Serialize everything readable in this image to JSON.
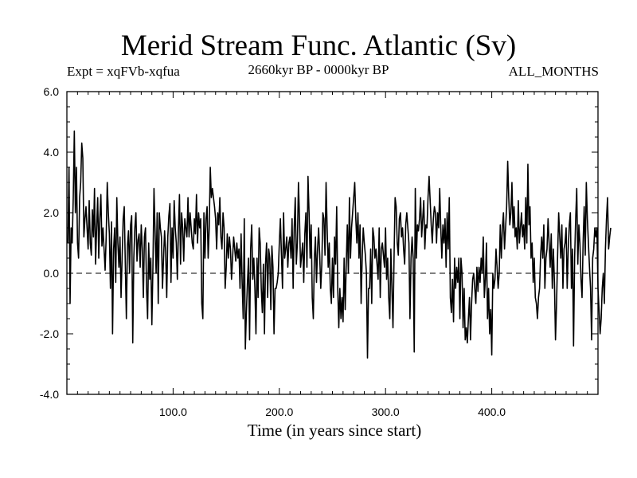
{
  "chart_data": {
    "type": "line",
    "title": "Merid Stream Func. Atlantic (Sv)",
    "subtitle_left": "Expt = xqFVb-xqfua",
    "subtitle_center": "2660kyr BP - 0000kyr BP",
    "subtitle_right": "ALL_MONTHS",
    "xlabel": "Time (in years since start)",
    "ylabel": "",
    "xlim": [
      0,
      500
    ],
    "ylim": [
      -4.0,
      6.0
    ],
    "x_ticks": [
      100,
      200,
      300,
      400
    ],
    "x_tick_labels": [
      "100.0",
      "200.0",
      "300.0",
      "400.0"
    ],
    "y_ticks": [
      -4,
      -2,
      0,
      2,
      4,
      6
    ],
    "y_tick_labels": [
      "-4.0",
      "-2.0",
      "0.0",
      "2.0",
      "4.0",
      "6.0"
    ],
    "reference_line": 0,
    "series": [
      {
        "name": "Merid Stream Func. Atlantic",
        "x_start": 1,
        "x_step": 1,
        "values": [
          1.0,
          3.5,
          -1.0,
          1.5,
          1.0,
          2.5,
          4.7,
          2.0,
          3.5,
          1.0,
          0.5,
          2.5,
          3.0,
          4.3,
          3.8,
          1.2,
          1.8,
          2.2,
          1.5,
          0.8,
          2.4,
          1.0,
          0.6,
          2.1,
          1.2,
          2.8,
          0.3,
          1.5,
          2.5,
          0.5,
          1.8,
          2.6,
          0.9,
          1.5,
          0.8,
          0.1,
          1.2,
          3.0,
          2.0,
          1.3,
          -0.5,
          1.7,
          -2.0,
          0.8,
          1.5,
          -0.3,
          2.5,
          1.0,
          0.2,
          1.2,
          -0.8,
          0.5,
          1.8,
          2.2,
          0.3,
          -1.5,
          0.9,
          1.4,
          0.0,
          1.6,
          1.9,
          -2.3,
          0.5,
          1.5,
          2.0,
          0.4,
          1.1,
          1.3,
          0.2,
          1.6,
          0.8,
          -0.8,
          1.2,
          1.5,
          -0.5,
          -1.5,
          1.0,
          -0.2,
          0.5,
          -1.7,
          0.2,
          2.8,
          1.4,
          0.0,
          2.0,
          -1.0,
          2.0,
          1.5,
          1.2,
          -0.5,
          0.5,
          1.4,
          0.7,
          -0.8,
          1.2,
          1.9,
          2.3,
          -0.3,
          1.5,
          0.5,
          2.4,
          1.5,
          1.0,
          -0.2,
          1.4,
          2.6,
          0.3,
          2.0,
          1.5,
          0.4,
          1.8,
          1.5,
          1.2,
          2.5,
          1.2,
          2.0,
          1.5,
          1.0,
          0.8,
          1.8,
          1.3,
          2.6,
          1.0,
          2.0,
          1.5,
          1.8,
          -1.0,
          -1.5,
          2.0,
          0.5,
          1.8,
          2.2,
          0.5,
          1.5,
          3.5,
          2.5,
          2.8,
          2.5,
          2.2,
          1.8,
          0.8,
          2.0,
          1.6,
          2.5,
          1.2,
          0.8,
          2.0,
          1.5,
          -0.5,
          0.2,
          1.3,
          0.5,
          1.2,
          0.8,
          -0.2,
          0.5,
          1.2,
          0.8,
          0.4,
          1.0,
          0.5,
          0.8,
          -0.5,
          1.3,
          -0.3,
          -1.5,
          1.8,
          -2.5,
          -1.3,
          -0.3,
          0.5,
          -2.2,
          0.8,
          1.6,
          -0.2,
          0.5,
          -0.5,
          -2.0,
          0.5,
          -0.8,
          1.5,
          1.0,
          -0.5,
          -1.3,
          0.3,
          -2.0,
          0.3,
          1.0,
          -0.8,
          0.8,
          0.5,
          -1.2,
          0.9,
          0.2,
          -2.0,
          -0.5,
          -0.5,
          -0.3,
          0.0,
          1.0,
          1.8,
          0.6,
          -0.5,
          2.0,
          0.5,
          0.8,
          1.2,
          0.2,
          1.0,
          1.2,
          0.5,
          1.8,
          -0.5,
          1.5,
          2.5,
          0.3,
          1.0,
          3.0,
          1.8,
          0.2,
          0.6,
          1.0,
          -0.3,
          1.3,
          2.0,
          0.2,
          3.2,
          2.0,
          0.5,
          1.6,
          -0.8,
          -1.5,
          0.5,
          1.2,
          -0.3,
          0.8,
          1.5,
          0.6,
          -0.5,
          0.3,
          2.0,
          1.8,
          0.6,
          3.0,
          1.5,
          0.2,
          1.0,
          -0.5,
          -1.0,
          0.5,
          -0.8,
          1.2,
          0.3,
          2.2,
          -0.5,
          -1.8,
          -0.5,
          -1.5,
          -0.8,
          -1.6,
          0.5,
          -1.2,
          0.3,
          1.6,
          0.0,
          2.5,
          0.5,
          1.5,
          2.0,
          2.5,
          3.0,
          1.8,
          1.0,
          2.0,
          0.5,
          1.6,
          -1.0,
          0.5,
          1.5,
          1.0,
          0.6,
          0.0,
          -2.8,
          -0.5,
          -0.5,
          0.8,
          -1.0,
          1.5,
          1.2,
          0.5,
          0.8,
          0.3,
          -0.2,
          1.5,
          -0.8,
          0.8,
          1.0,
          0.6,
          0.2,
          1.5,
          -0.2,
          0.5,
          -0.8,
          -1.5,
          0.8,
          -0.5,
          -1.8,
          0.5,
          2.5,
          2.2,
          1.0,
          0.6,
          1.8,
          2.0,
          1.2,
          1.5,
          0.8,
          0.3,
          1.6,
          2.0,
          1.5,
          1.0,
          -1.5,
          0.5,
          1.2,
          0.5,
          -2.6,
          2.8,
          0.5,
          1.6,
          1.4,
          1.8,
          2.5,
          1.2,
          1.8,
          2.4,
          0.8,
          1.6,
          1.5,
          2.5,
          3.2,
          2.4,
          1.6,
          1.0,
          1.8,
          2.2,
          2.0,
          1.0,
          2.0,
          1.5,
          2.8,
          1.5,
          0.5,
          1.6,
          1.0,
          1.8,
          0.2,
          2.0,
          0.8,
          2.5,
          -0.8,
          -1.3,
          -0.2,
          -1.6,
          0.5,
          -0.5,
          0.2,
          -0.3,
          0.5,
          -1.5,
          0.5,
          0.0,
          -1.8,
          -0.5,
          -2.2,
          -1.8,
          -2.3,
          -1.5,
          -0.8,
          -2.2,
          -1.0,
          -0.2,
          0.0,
          -0.5,
          -1.0,
          0.2,
          -0.6,
          0.2,
          -0.3,
          0.5,
          0.0,
          1.2,
          -0.8,
          -0.2,
          1.0,
          -1.5,
          -0.5,
          -2.0,
          -1.2,
          -2.7,
          0.0,
          -0.5,
          -0.2,
          0.8,
          0.2,
          -0.5,
          0.0,
          1.6,
          0.5,
          1.5,
          2.0,
          0.8,
          1.5,
          2.2,
          3.7,
          2.5,
          1.6,
          2.0,
          3.0,
          1.5,
          2.2,
          1.2,
          1.5,
          0.8,
          2.4,
          1.0,
          1.5,
          2.0,
          1.2,
          1.6,
          0.8,
          2.5,
          1.0,
          3.6,
          1.6,
          2.2,
          0.5,
          1.0,
          -0.3,
          0.5,
          -0.8,
          -1.0,
          -1.5,
          -0.8,
          -0.5,
          0.6,
          1.2,
          0.5,
          1.6,
          -0.5,
          0.5,
          0.8,
          1.8,
          1.0,
          0.2,
          1.3,
          -0.5,
          0.8,
          -0.3,
          -2.2,
          -1.0,
          0.6,
          2.0,
          1.2,
          0.5,
          1.6,
          -0.5,
          0.8,
          1.0,
          1.5,
          -0.5,
          0.8,
          1.6,
          2.0,
          -0.5,
          0.8,
          -2.4,
          0.5,
          1.8,
          2.8,
          0.3,
          1.6,
          1.0,
          -0.2,
          -0.8,
          1.0,
          2.2,
          0.6,
          3.0,
          1.8,
          1.0,
          0.2,
          -0.5,
          -2.2,
          0.5,
          0.8,
          1.5,
          1.2,
          1.5,
          -0.5,
          -1.2,
          -2.0,
          -1.5,
          -0.5,
          0.0,
          -1.0,
          0.8,
          1.8,
          2.5,
          0.8,
          1.2,
          1.5
        ]
      }
    ]
  }
}
